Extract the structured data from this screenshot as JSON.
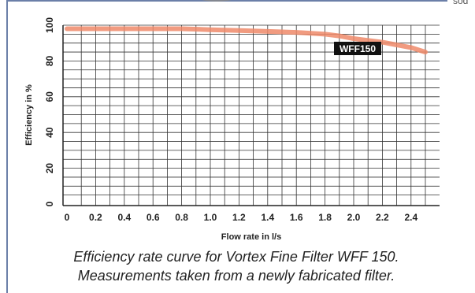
{
  "page": {
    "top_fragment": "sod",
    "caption_line1": "Efficiency rate curve for Vortex Fine Filter WFF 150.",
    "caption_line2": "Measurements taken from a newly fabricated filter."
  },
  "chart_data": {
    "type": "line",
    "title": "",
    "xlabel": "Flow rate in l/s",
    "ylabel": "Efficiency in %",
    "xlim": [
      0,
      2.5
    ],
    "ylim": [
      0,
      100
    ],
    "xticks": [
      "0",
      "0.2",
      "0.4",
      "0.6",
      "0.8",
      "1.0",
      "1.2",
      "1.4",
      "1.6",
      "1.8",
      "2.0",
      "2.2",
      "2.4"
    ],
    "yticks": [
      "0",
      "20",
      "40",
      "60",
      "80",
      "100"
    ],
    "grid": true,
    "series": [
      {
        "name": "WFF 150",
        "color": "#ee8a6a",
        "x": [
          0,
          0.2,
          0.4,
          0.6,
          0.8,
          1.0,
          1.2,
          1.4,
          1.6,
          1.8,
          1.9,
          2.0,
          2.1,
          2.2,
          2.3,
          2.4,
          2.5
        ],
        "y": [
          98,
          98,
          98,
          98,
          98,
          97.5,
          97,
          96.5,
          96,
          95,
          94,
          92.5,
          91.5,
          90.5,
          89,
          87.5,
          85
        ]
      }
    ]
  }
}
